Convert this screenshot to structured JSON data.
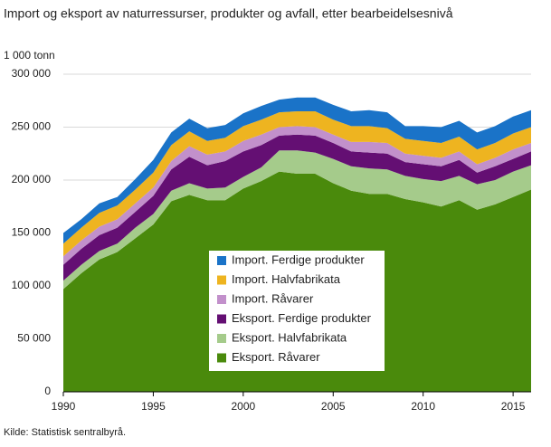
{
  "chart_data": {
    "type": "stacked-area",
    "title": "Import og eksport av naturressurser, produkter og avfall, etter bearbeidelsesnivå",
    "y_label": "1 000 tonn",
    "source": "Kilde: Statistisk sentralbyrå.",
    "x": [
      1990,
      1991,
      1992,
      1993,
      1994,
      1995,
      1996,
      1997,
      1998,
      1999,
      2000,
      2001,
      2002,
      2003,
      2004,
      2005,
      2006,
      2007,
      2008,
      2009,
      2010,
      2011,
      2012,
      2013,
      2014,
      2015,
      2016
    ],
    "xlim": [
      1990,
      2016
    ],
    "xticks": [
      1990,
      1995,
      2000,
      2005,
      2010,
      2015
    ],
    "ylim": [
      0,
      300000
    ],
    "yticks": [
      0,
      {
        "value": 50000,
        "label": "50 000"
      },
      {
        "value": 100000,
        "label": "100 000"
      },
      {
        "value": 150000,
        "label": "150 000"
      },
      {
        "value": 200000,
        "label": "200 000"
      },
      {
        "value": 250000,
        "label": "250 000"
      },
      {
        "value": 300000,
        "label": "300 000"
      }
    ],
    "grid": true,
    "series": [
      {
        "name": "Eksport. Råvarer",
        "color": "#4a8a0c",
        "values": [
          97000,
          112000,
          125000,
          132000,
          145000,
          158000,
          180000,
          186000,
          181000,
          181000,
          192000,
          199000,
          208000,
          206000,
          206000,
          197000,
          190000,
          187000,
          187000,
          182000,
          179000,
          175000,
          181000,
          172000,
          177000,
          184000,
          191000
        ]
      },
      {
        "name": "Eksport. Halvfabrikata",
        "color": "#a5cb8b",
        "values": [
          8000,
          8000,
          8000,
          8000,
          10000,
          10000,
          10000,
          11000,
          11000,
          12000,
          11000,
          13000,
          20000,
          22000,
          20000,
          23000,
          23000,
          24000,
          23000,
          22000,
          22000,
          24000,
          23000,
          24000,
          23000,
          24000,
          23000
        ]
      },
      {
        "name": "Eksport. Ferdige produkter",
        "color": "#640f73",
        "values": [
          15000,
          15000,
          15000,
          15000,
          15000,
          17000,
          20000,
          25000,
          22000,
          25000,
          24000,
          21000,
          14000,
          15000,
          16000,
          15000,
          14000,
          15000,
          15000,
          13000,
          14000,
          14000,
          15000,
          11000,
          13000,
          12000,
          13000
        ]
      },
      {
        "name": "Import. Råvarer",
        "color": "#c290cb",
        "values": [
          8000,
          8000,
          8000,
          8000,
          8000,
          8000,
          8000,
          10000,
          10000,
          9000,
          10000,
          10000,
          8000,
          8000,
          8000,
          8000,
          9000,
          10000,
          10000,
          8000,
          8000,
          8000,
          8000,
          8000,
          8000,
          9000,
          8000
        ]
      },
      {
        "name": "Import. Halvfabrikata",
        "color": "#eeb420",
        "values": [
          12000,
          12000,
          13000,
          13000,
          13000,
          14000,
          15000,
          14000,
          13000,
          13000,
          14000,
          14000,
          14000,
          14000,
          15000,
          14000,
          15000,
          15000,
          14000,
          14000,
          14000,
          14000,
          14000,
          14000,
          14000,
          15000,
          15000
        ]
      },
      {
        "name": "Import. Ferdige produkter",
        "color": "#1a73c8",
        "values": [
          10000,
          8000,
          9000,
          8000,
          10000,
          12000,
          12000,
          12000,
          12000,
          12000,
          12000,
          13000,
          12000,
          13000,
          13000,
          14000,
          14000,
          15000,
          15000,
          12000,
          14000,
          15000,
          15000,
          16000,
          16000,
          16000,
          16000
        ]
      }
    ]
  }
}
